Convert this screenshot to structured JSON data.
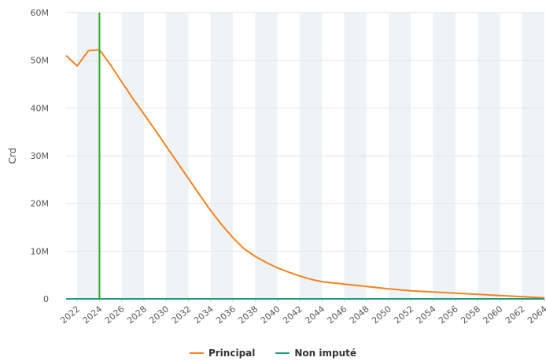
{
  "chart_data": {
    "type": "line",
    "ylabel": "Crd",
    "xlabel": "",
    "title": "",
    "y_ticks": [
      "0",
      "10M",
      "20M",
      "30M",
      "40M",
      "50M",
      "60M"
    ],
    "ylim": [
      0,
      60000000
    ],
    "xlim": [
      2021,
      2064
    ],
    "x_ticks": [
      "2022",
      "2024",
      "2026",
      "2028",
      "2030",
      "2032",
      "2034",
      "2036",
      "2038",
      "2040",
      "2042",
      "2044",
      "2046",
      "2048",
      "2050",
      "2052",
      "2054",
      "2056",
      "2058",
      "2060",
      "2062",
      "2064"
    ],
    "band_years": [
      2022,
      2026,
      2030,
      2034,
      2038,
      2042,
      2046,
      2050,
      2054,
      2058,
      2062
    ],
    "band_width_years": 2,
    "marker_year": 2024,
    "marker_color": "#33aa22",
    "series": [
      {
        "name": "Principal",
        "color": "#f58220",
        "x": [
          2021,
          2022,
          2023,
          2024,
          2025,
          2026,
          2027,
          2028,
          2029,
          2030,
          2031,
          2032,
          2033,
          2034,
          2035,
          2036,
          2037,
          2038,
          2039,
          2040,
          2041,
          2042,
          2043,
          2044,
          2046,
          2048,
          2050,
          2052,
          2054,
          2056,
          2058,
          2060,
          2062,
          2064
        ],
        "y": [
          51000000,
          48800000,
          52000000,
          52200000,
          49000000,
          45500000,
          42000000,
          38700000,
          35400000,
          32000000,
          28600000,
          25200000,
          21800000,
          18500000,
          15500000,
          12800000,
          10500000,
          8900000,
          7600000,
          6500000,
          5600000,
          4800000,
          4100000,
          3600000,
          3100000,
          2600000,
          2100000,
          1700000,
          1450000,
          1200000,
          950000,
          700000,
          450000,
          200000
        ]
      },
      {
        "name": "Non imputé",
        "color": "#1f9b7a",
        "x": [
          2021,
          2064
        ],
        "y": [
          0,
          0
        ]
      }
    ],
    "legend": "bottom-center",
    "grid": true
  }
}
